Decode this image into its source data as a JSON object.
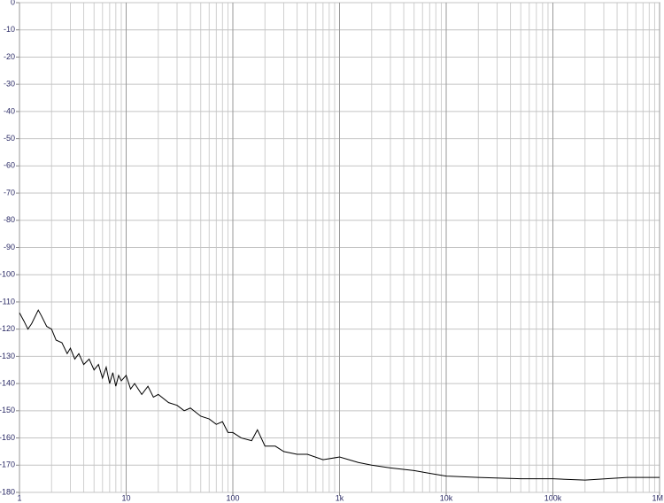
{
  "chart_data": {
    "type": "line",
    "xscale": "log",
    "grid": true,
    "minor_grid": true,
    "xlim": [
      1,
      1000000
    ],
    "ylim": [
      -180,
      0
    ],
    "xticks": [
      1,
      10,
      100,
      {
        "value": 1000,
        "label": "1k"
      },
      {
        "value": 10000,
        "label": "10k"
      },
      {
        "value": 100000,
        "label": "100k"
      },
      {
        "value": 1000000,
        "label": "1M"
      }
    ],
    "yticks": [
      0,
      -10,
      -20,
      -30,
      -40,
      -50,
      -60,
      -70,
      -80,
      -90,
      -100,
      -110,
      -120,
      -130,
      -140,
      -150,
      -160,
      -170,
      -180
    ],
    "series": [
      {
        "color": "#000000",
        "x": [
          1,
          1.1,
          1.2,
          1.3,
          1.5,
          1.6,
          1.8,
          2,
          2.2,
          2.5,
          2.8,
          3,
          3.3,
          3.6,
          4,
          4.5,
          5,
          5.5,
          6,
          6.5,
          7,
          7.5,
          8,
          8.5,
          9,
          10,
          11,
          12,
          14,
          16,
          18,
          20,
          25,
          30,
          35,
          40,
          50,
          60,
          70,
          80,
          90,
          100,
          120,
          150,
          170,
          200,
          250,
          300,
          400,
          500,
          700,
          1000,
          1500,
          2000,
          3000,
          5000,
          7000,
          10000,
          20000,
          50000,
          100000,
          200000,
          500000,
          1000000
        ],
        "values": [
          -114,
          -117,
          -120,
          -118,
          -113,
          -115,
          -119,
          -120,
          -124,
          -125,
          -129,
          -127,
          -131,
          -129,
          -133,
          -131,
          -135,
          -133,
          -138,
          -134,
          -140,
          -136,
          -141,
          -137,
          -139,
          -137,
          -142,
          -140,
          -144,
          -141,
          -145,
          -144,
          -147,
          -148,
          -150,
          -149,
          -152,
          -153,
          -155,
          -154,
          -158,
          -158,
          -160,
          -161,
          -157,
          -163,
          -163,
          -165,
          -166,
          -166,
          -168,
          -167,
          -169,
          -170,
          -171,
          -172,
          -173,
          -174,
          -174.5,
          -175,
          -175,
          -175.5,
          -174.5,
          -174.5
        ]
      }
    ]
  }
}
